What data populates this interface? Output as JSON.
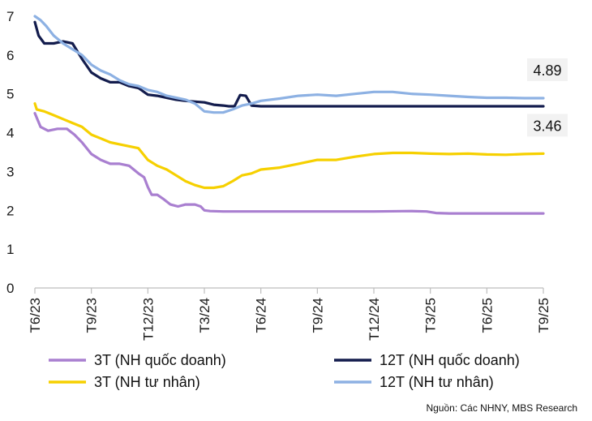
{
  "chart_data": {
    "type": "line",
    "title": "",
    "xlabel": "",
    "ylabel": "",
    "ylim": [
      0,
      7
    ],
    "yticks": [
      0,
      1,
      2,
      3,
      4,
      5,
      6,
      7
    ],
    "xlim": [
      0,
      27
    ],
    "xtick_labels": [
      "T6/23",
      "T9/23",
      "T12/23",
      "T3/24",
      "T6/24",
      "T9/24",
      "T12/24",
      "T3/25",
      "T6/25",
      "T9/25"
    ],
    "xtick_positions": [
      0,
      3,
      6,
      9,
      12,
      15,
      18,
      21,
      24,
      27
    ],
    "series": [
      {
        "name": "3T (NH quốc doanh)",
        "color": "#a97fd0",
        "x": [
          0,
          0.3,
          0.7,
          1.2,
          1.7,
          2.1,
          2.5,
          3.0,
          3.5,
          4.0,
          4.5,
          5.0,
          5.5,
          5.8,
          6.0,
          6.2,
          6.5,
          6.8,
          7.2,
          7.6,
          8.0,
          8.5,
          8.8,
          9.0,
          9.3,
          10,
          12,
          15,
          18,
          20,
          20.8,
          21.3,
          22,
          24,
          27
        ],
        "values": [
          4.5,
          4.15,
          4.05,
          4.1,
          4.1,
          3.95,
          3.75,
          3.45,
          3.3,
          3.2,
          3.2,
          3.15,
          2.95,
          2.85,
          2.6,
          2.4,
          2.4,
          2.3,
          2.15,
          2.1,
          2.15,
          2.15,
          2.1,
          2.0,
          1.98,
          1.97,
          1.97,
          1.97,
          1.97,
          1.98,
          1.97,
          1.93,
          1.92,
          1.92,
          1.92
        ]
      },
      {
        "name": "12T (NH quốc doanh)",
        "color": "#131c4d",
        "x": [
          0,
          0.2,
          0.5,
          1.0,
          1.5,
          2.0,
          2.5,
          3.0,
          3.5,
          4.0,
          4.5,
          5.0,
          5.5,
          6.0,
          6.5,
          7.0,
          7.5,
          8.0,
          8.5,
          9.0,
          9.5,
          10.0,
          10.3,
          10.6,
          10.9,
          11.2,
          11.5,
          12,
          15,
          18,
          21,
          24,
          27
        ],
        "values": [
          6.85,
          6.5,
          6.3,
          6.3,
          6.35,
          6.3,
          5.9,
          5.55,
          5.4,
          5.3,
          5.3,
          5.2,
          5.15,
          4.98,
          4.95,
          4.9,
          4.85,
          4.82,
          4.8,
          4.78,
          4.72,
          4.7,
          4.68,
          4.68,
          4.97,
          4.95,
          4.7,
          4.68,
          4.68,
          4.68,
          4.68,
          4.68,
          4.68
        ]
      },
      {
        "name": "3T (NH tư nhân)",
        "color": "#f6d000",
        "x": [
          0,
          0.1,
          0.5,
          1.0,
          1.5,
          2.0,
          2.5,
          3.0,
          3.5,
          4.0,
          4.5,
          5.0,
          5.5,
          6.0,
          6.5,
          7.0,
          7.5,
          8.0,
          8.5,
          9.0,
          9.5,
          10.0,
          10.5,
          11.0,
          11.5,
          12.0,
          13.0,
          14.0,
          15.0,
          16.0,
          17.0,
          18.0,
          19.0,
          20.0,
          21.0,
          22.0,
          23.0,
          24.0,
          25.0,
          26.0,
          27.0
        ],
        "values": [
          4.75,
          4.6,
          4.55,
          4.45,
          4.35,
          4.25,
          4.15,
          3.95,
          3.85,
          3.75,
          3.7,
          3.65,
          3.6,
          3.3,
          3.15,
          3.05,
          2.9,
          2.75,
          2.65,
          2.58,
          2.58,
          2.62,
          2.75,
          2.9,
          2.95,
          3.05,
          3.1,
          3.2,
          3.3,
          3.3,
          3.38,
          3.45,
          3.48,
          3.48,
          3.46,
          3.45,
          3.46,
          3.44,
          3.43,
          3.45,
          3.46
        ]
      },
      {
        "name": "12T (NH tư nhân)",
        "color": "#8db1e3",
        "x": [
          0,
          0.3,
          0.6,
          1.0,
          1.5,
          2.0,
          2.5,
          3.0,
          3.5,
          4.0,
          4.5,
          5.0,
          5.5,
          6.0,
          6.5,
          7.0,
          7.5,
          8.0,
          8.5,
          9.0,
          9.5,
          10.0,
          10.5,
          11.0,
          11.5,
          12.0,
          13.0,
          14.0,
          15.0,
          16.0,
          17.0,
          18.0,
          19.0,
          20.0,
          21.0,
          22.0,
          23.0,
          24.0,
          25.0,
          26.0,
          27.0
        ],
        "values": [
          7.0,
          6.9,
          6.75,
          6.5,
          6.3,
          6.15,
          6.0,
          5.75,
          5.6,
          5.5,
          5.35,
          5.25,
          5.2,
          5.1,
          5.05,
          4.95,
          4.9,
          4.85,
          4.75,
          4.55,
          4.52,
          4.52,
          4.6,
          4.7,
          4.75,
          4.82,
          4.88,
          4.95,
          4.98,
          4.95,
          5.0,
          5.05,
          5.05,
          5.0,
          4.98,
          4.95,
          4.92,
          4.9,
          4.9,
          4.89,
          4.89
        ]
      }
    ],
    "annotations": [
      {
        "series": "12T (NH tư nhân)",
        "text": "4.89",
        "x": 27,
        "y": 4.89
      },
      {
        "series": "3T (NH tư nhân)",
        "text": "3.46",
        "x": 27,
        "y": 3.46
      }
    ],
    "legend": {
      "position": "bottom",
      "entries": [
        "3T (NH quốc doanh)",
        "12T (NH quốc doanh)",
        "3T (NH tư nhân)",
        "12T (NH tư nhân)"
      ]
    },
    "source": "Nguồn: Các NHNY, MBS Research"
  }
}
